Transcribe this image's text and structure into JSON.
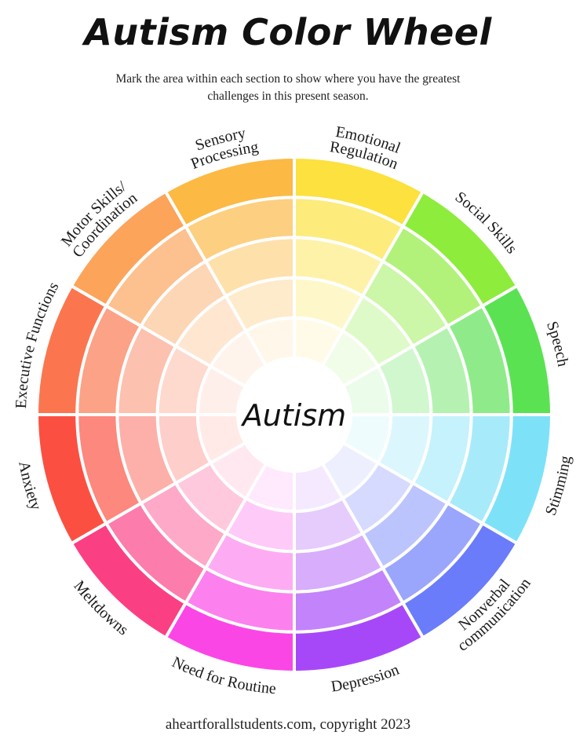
{
  "page": {
    "title": "Autism Color Wheel",
    "instructions": "Mark the area within each section to show where you have the greatest challenges in this present season.",
    "footer": "aheartforallstudents.com, copyright 2023"
  },
  "wheel": {
    "center_label": "Autism",
    "ring_count": 5,
    "sections": [
      {
        "label_lines": [
          "Emotional",
          "Regulation"
        ],
        "color": "#FCE13F"
      },
      {
        "label_lines": [
          "Social Skills"
        ],
        "color": "#8EEC3D"
      },
      {
        "label_lines": [
          "Speech"
        ],
        "color": "#5BE253"
      },
      {
        "label_lines": [
          "Stimming"
        ],
        "color": "#7DE2F8"
      },
      {
        "label_lines": [
          "Nonverbal",
          "communication"
        ],
        "color": "#6A7CFA"
      },
      {
        "label_lines": [
          "Depression"
        ],
        "color": "#A748F8"
      },
      {
        "label_lines": [
          "Need for Routine"
        ],
        "color": "#FB46E6"
      },
      {
        "label_lines": [
          "Meltdowns"
        ],
        "color": "#FB3F83"
      },
      {
        "label_lines": [
          "Anxiety"
        ],
        "color": "#FB5041"
      },
      {
        "label_lines": [
          "Executive Functions"
        ],
        "color": "#FB764F"
      },
      {
        "label_lines": [
          "Motor Skills/",
          "Coordination"
        ],
        "color": "#FBA45A"
      },
      {
        "label_lines": [
          "Sensory",
          "Processing"
        ],
        "color": "#FCB944"
      }
    ]
  }
}
